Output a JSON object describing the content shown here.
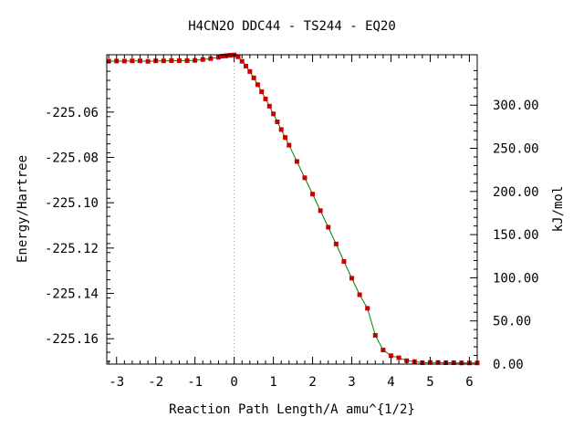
{
  "chart_data": {
    "type": "line",
    "title": "H4CN2O   DDC44 - TS244 - EQ20",
    "xlabel": "Reaction Path Length/A amu^{1/2}",
    "ylabel": "Energy/Hartree",
    "y2label": "kJ/mol",
    "xlim": [
      -3.25,
      6.2
    ],
    "ylim": [
      -225.1712,
      -225.0347
    ],
    "y2lim": [
      0,
      358.4
    ],
    "x_ticks": [
      "-3",
      "-2",
      "-1",
      "0",
      "1",
      "2",
      "3",
      "4",
      "5",
      "6"
    ],
    "y_ticks": [
      "-225.06",
      "-225.08",
      "-225.10",
      "-225.12",
      "-225.14",
      "-225.16"
    ],
    "y2_ticks": [
      "0.00",
      "50.00",
      "100.00",
      "150.00",
      "200.00",
      "250.00",
      "300.00"
    ],
    "ts_marker_x": 0,
    "grid": false,
    "colors": {
      "line": "#008000",
      "points": "#cc0000",
      "axes": "#000000",
      "ts_line": "#999999"
    },
    "series": [
      {
        "x": [
          -3.2,
          -3.0,
          -2.8,
          -2.6,
          -2.4,
          -2.2,
          -2.0,
          -1.8,
          -1.6,
          -1.4,
          -1.2,
          -1.0,
          -0.8,
          -0.6,
          -0.4,
          -0.3,
          -0.2,
          -0.1,
          0.0,
          0.1,
          0.2,
          0.3,
          0.4,
          0.5,
          0.6,
          0.7,
          0.8,
          0.9,
          1.0,
          1.1,
          1.2,
          1.3,
          1.4,
          1.6,
          1.8,
          2.0,
          2.2,
          2.4,
          2.6,
          2.8,
          3.0,
          3.2,
          3.4,
          3.6,
          3.8,
          4.0,
          4.2,
          4.4,
          4.6,
          4.8,
          5.0,
          5.2,
          5.4,
          5.6,
          5.8,
          6.0,
          6.2
        ],
        "y": [
          -225.0375,
          -225.0375,
          -225.0375,
          -225.0374,
          -225.0374,
          -225.0376,
          -225.0374,
          -225.0374,
          -225.0373,
          -225.0373,
          -225.0373,
          -225.0372,
          -225.0368,
          -225.0364,
          -225.0358,
          -225.0353,
          -225.0351,
          -225.0349,
          -225.0348,
          -225.0356,
          -225.0376,
          -225.0397,
          -225.0421,
          -225.0449,
          -225.0479,
          -225.051,
          -225.0542,
          -225.0574,
          -225.0608,
          -225.0643,
          -225.0677,
          -225.0712,
          -225.0746,
          -225.0818,
          -225.089,
          -225.0962,
          -225.1035,
          -225.1108,
          -225.1182,
          -225.1259,
          -225.1333,
          -225.1406,
          -225.1466,
          -225.1585,
          -225.165,
          -225.1675,
          -225.1684,
          -225.1697,
          -225.1701,
          -225.1706,
          -225.1705,
          -225.1705,
          -225.1706,
          -225.1706,
          -225.1707,
          -225.1707,
          -225.1707
        ]
      }
    ]
  }
}
